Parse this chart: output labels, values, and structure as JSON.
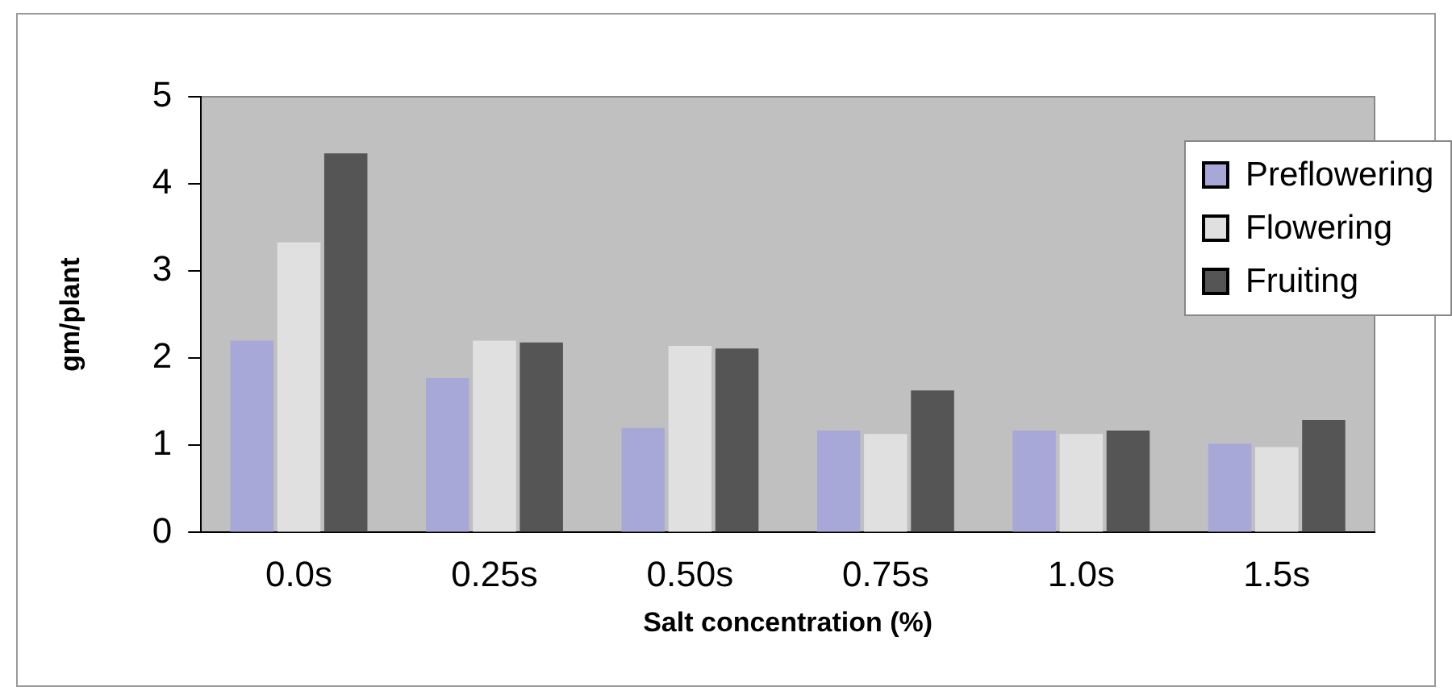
{
  "chart_data": {
    "type": "bar",
    "xlabel": "Salt concentration (%)",
    "ylabel": "gm/plant",
    "categories": [
      "0.0s",
      "0.25s",
      "0.50s",
      "0.75s",
      "1.0s",
      "1.5s"
    ],
    "series": [
      {
        "name": "Preflowering",
        "color": "#a8a8d8",
        "values": [
          2.2,
          1.77,
          1.2,
          1.17,
          1.17,
          1.02
        ]
      },
      {
        "name": "Flowering",
        "color": "#e0e0e0",
        "values": [
          3.33,
          2.2,
          2.14,
          1.13,
          1.13,
          0.98
        ]
      },
      {
        "name": "Fruiting",
        "color": "#555555",
        "values": [
          4.35,
          2.18,
          2.11,
          1.63,
          1.17,
          1.29
        ]
      }
    ],
    "ylim": [
      0,
      5
    ],
    "yticks": [
      0,
      1,
      2,
      3,
      4,
      5
    ],
    "grid": false,
    "legend": "top right"
  }
}
